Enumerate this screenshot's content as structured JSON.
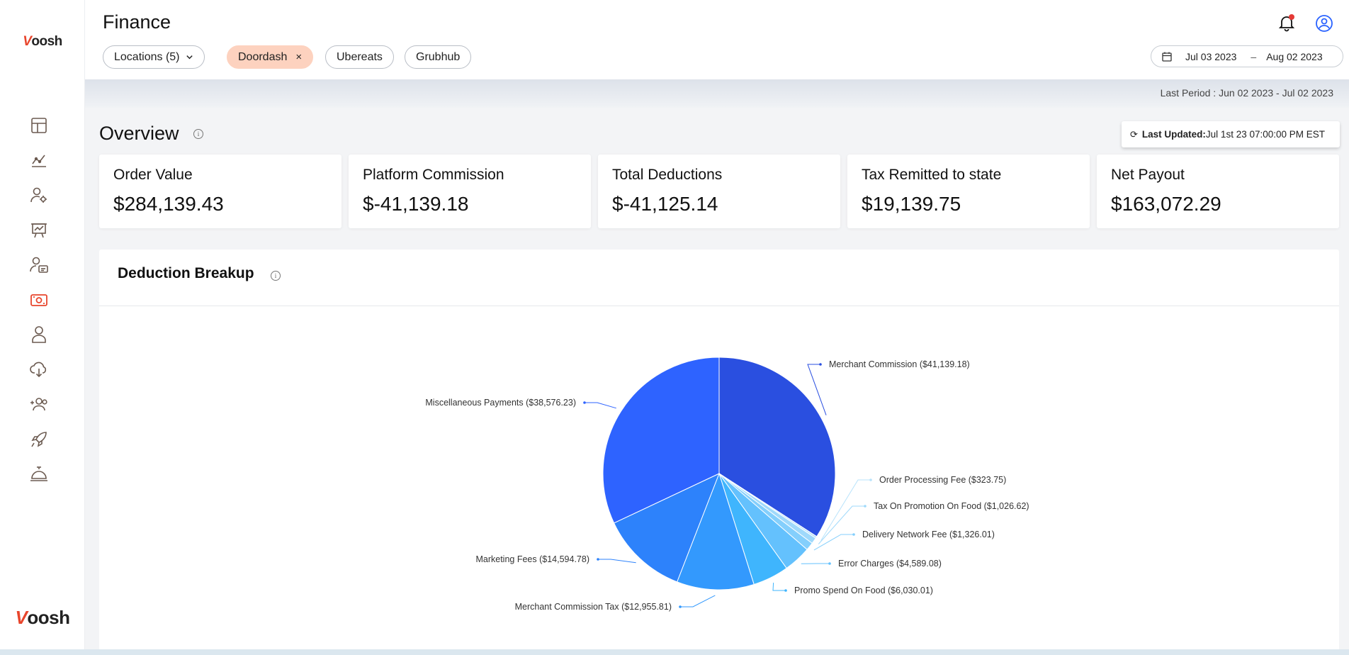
{
  "brand": {
    "logo_top_v": "V",
    "logo_top_rest": "oosh",
    "logo_bottom_v": "V",
    "logo_bottom_rest": "oosh",
    "accent": "#e8452c"
  },
  "sidebar": {
    "items": [
      {
        "icon": "dashboard-icon",
        "active": false
      },
      {
        "icon": "trend-chart-icon",
        "active": false
      },
      {
        "icon": "user-settings-icon",
        "active": false
      },
      {
        "icon": "presentation-board-icon",
        "active": false
      },
      {
        "icon": "user-message-icon",
        "active": false
      },
      {
        "icon": "cash-icon",
        "active": true
      },
      {
        "icon": "person-icon",
        "active": false
      },
      {
        "icon": "cloud-download-icon",
        "active": false
      },
      {
        "icon": "add-users-icon",
        "active": false
      },
      {
        "icon": "rocket-icon",
        "active": false
      },
      {
        "icon": "service-bell-icon",
        "active": false
      }
    ]
  },
  "header": {
    "title": "Finance",
    "filters": {
      "locations": "Locations (5)",
      "doordash": "Doordash",
      "doordash_remove": "×",
      "ubereats": "Ubereats",
      "grubhub": "Grubhub"
    },
    "date_from": "Jul 03 2023",
    "date_separator": "–",
    "date_to": "Aug 02 2023"
  },
  "period": {
    "text": "Last Period : Jun 02 2023 - Jul 02 2023"
  },
  "overview": {
    "title": "Overview",
    "info": "i",
    "last_updated_label": "Last Updated:",
    "last_updated_value": "Jul 1st 23 07:00:00 PM EST",
    "cards": [
      {
        "label": "Order Value",
        "value": "$284,139.43"
      },
      {
        "label": "Platform Commission",
        "value": "$-41,139.18"
      },
      {
        "label": "Total Deductions",
        "value": "$-41,125.14"
      },
      {
        "label": "Tax Remitted to state",
        "value": "$19,139.75"
      },
      {
        "label": "Net Payout",
        "value": "$163,072.29"
      }
    ]
  },
  "breakup": {
    "title": "Deduction Breakup",
    "info": "i"
  },
  "chart_data": {
    "type": "pie",
    "title": "Deduction Breakup",
    "slices": [
      {
        "name": "Merchant Commission",
        "value": 41139.18,
        "label": "Merchant Commission ($41,139.18)",
        "color": "#2a4fe0"
      },
      {
        "name": "Order Processing Fee",
        "value": 323.75,
        "label": "Order Processing Fee ($323.75)",
        "color": "#b8e3fb"
      },
      {
        "name": "Tax On Promotion On Food",
        "value": 1026.62,
        "label": "Tax On Promotion On Food ($1,026.62)",
        "color": "#9fd9fb"
      },
      {
        "name": "Delivery Network Fee",
        "value": 1326.01,
        "label": "Delivery Network Fee ($1,326.01)",
        "color": "#84cffc"
      },
      {
        "name": "Error Charges",
        "value": 4589.08,
        "label": "Error Charges ($4,589.08)",
        "color": "#64c1fd"
      },
      {
        "name": "Promo Spend On Food",
        "value": 6030.01,
        "label": "Promo Spend On Food ($6,030.01)",
        "color": "#3fb5fd"
      },
      {
        "name": "Merchant Commission Tax",
        "value": 12955.81,
        "label": "Merchant Commission Tax ($12,955.81)",
        "color": "#3399fd"
      },
      {
        "name": "Marketing Fees",
        "value": 14594.78,
        "label": "Marketing Fees ($14,594.78)",
        "color": "#2d82fb"
      },
      {
        "name": "Miscellaneous Payments",
        "value": 38576.23,
        "label": "Miscellaneous Payments ($38,576.23)",
        "color": "#2e63ff"
      }
    ]
  }
}
